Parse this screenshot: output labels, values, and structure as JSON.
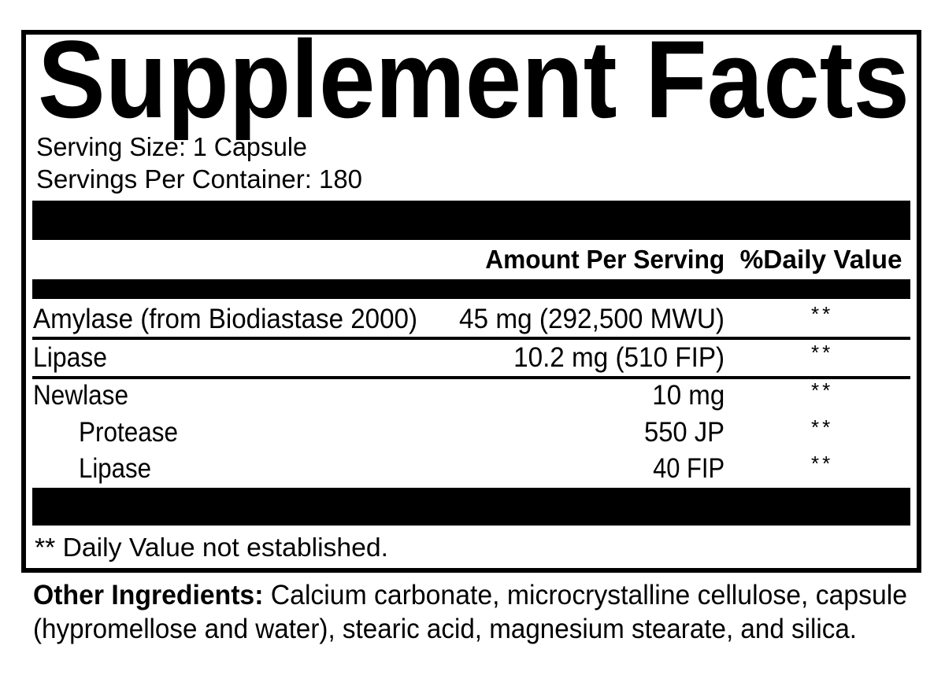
{
  "title": "Supplement Facts",
  "serving_size": "Serving Size: 1 Capsule",
  "servings_per_container": "Servings Per Container: 180",
  "header": {
    "amount": "Amount Per Serving",
    "daily_value": "%Daily Value"
  },
  "rows": [
    {
      "name": "Amylase (from Biodiastase 2000)",
      "amount": "45 mg (292,500 MWU)",
      "dv": "**"
    },
    {
      "name": "Lipase",
      "amount": "10.2 mg (510 FIP)",
      "dv": "**"
    },
    {
      "name": "Newlase",
      "amount": "10 mg",
      "dv": "**"
    },
    {
      "name": "Protease",
      "amount": "550 JP",
      "dv": "**"
    },
    {
      "name": "Lipase",
      "amount": "40 FIP",
      "dv": "**"
    }
  ],
  "footnote": "** Daily Value not established.",
  "other_ingredients": {
    "label": "Other Ingredients:",
    "line1": " Calcium carbonate, microcrystalline cellulose, capsule",
    "line2": "(hypromellose and water), stearic acid, magnesium stearate, and silica."
  }
}
